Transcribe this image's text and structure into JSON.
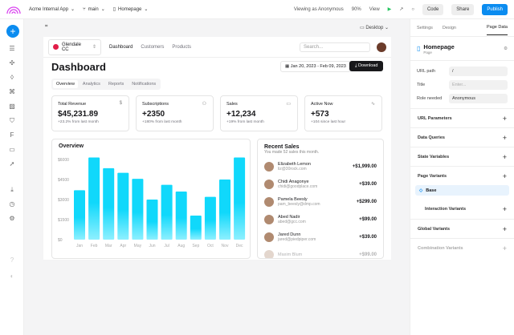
{
  "topbar": {
    "app": "Acme Internal App",
    "branch": "main",
    "page": "Homepage",
    "viewing": "Viewing as Anonymous",
    "zoom": "90%",
    "view": "View",
    "code": "Code",
    "share": "Share",
    "publish": "Publish"
  },
  "canvas": {
    "device": "Desktop"
  },
  "nav": {
    "team": "Glendale CC",
    "links": [
      "Dashboard",
      "Customers",
      "Products"
    ],
    "search_placeholder": "Search..."
  },
  "dashboard": {
    "title": "Dashboard",
    "date_range": "Jan 20, 2023 - Feb 09, 2023",
    "download": "Download",
    "tabs": [
      "Overview",
      "Analytics",
      "Reports",
      "Notifications"
    ],
    "cards": [
      {
        "title": "Total Revenue",
        "value": "$45,231.89",
        "sub": "+23.2% from last month",
        "icon": "$"
      },
      {
        "title": "Subscriptions",
        "value": "+2350",
        "sub": "+180% from last month",
        "icon": "👥"
      },
      {
        "title": "Sales",
        "value": "+12,234",
        "sub": "+19% from last month",
        "icon": "▭"
      },
      {
        "title": "Active Now",
        "value": "+573",
        "sub": "+104 since last hour",
        "icon": "∿"
      }
    ],
    "recent_title": "Recent Sales",
    "recent_sub": "You made 52 sales this month.",
    "sales": [
      {
        "name": "Elizabeth Lemon",
        "email": "liz@30rock.com",
        "amount": "+$1,999.00"
      },
      {
        "name": "Chidi Anagonye",
        "email": "chidi@goodplace.com",
        "amount": "+$39.00"
      },
      {
        "name": "Pamela Beesly",
        "email": "pam_beesly@dmp.com",
        "amount": "+$299.00"
      },
      {
        "name": "Abed Nadir",
        "email": "abed@gcc.com",
        "amount": "+$99.00"
      },
      {
        "name": "Jared Dunn",
        "email": "jared@piedpiper.com",
        "amount": "+$39.00"
      },
      {
        "name": "Maxim Blum",
        "email": "",
        "amount": "+$99.00"
      }
    ]
  },
  "chart_data": {
    "type": "bar",
    "title": "Overview",
    "categories": [
      "Jan",
      "Feb",
      "Mar",
      "Apr",
      "May",
      "Jun",
      "Jul",
      "Aug",
      "Sep",
      "Oct",
      "Nov",
      "Dec"
    ],
    "values": [
      3700,
      6150,
      5350,
      5000,
      4550,
      3000,
      4100,
      3600,
      1800,
      3200,
      4500,
      6150
    ],
    "yticks": [
      "$0",
      "$1500",
      "$3000",
      "$4500",
      "$6000"
    ],
    "ylim": [
      0,
      6000
    ],
    "color": "#10d8fb"
  },
  "panel": {
    "tabs": [
      "Settings",
      "Design",
      "Page Data"
    ],
    "page_name": "Homepage",
    "page_type": "Page",
    "fields": [
      {
        "label": "URL path",
        "value": "/"
      },
      {
        "label": "Title",
        "value": "Enter..."
      },
      {
        "label": "Role needed",
        "value": "Anonymous"
      }
    ],
    "sections": [
      "URL Parameters",
      "Data Queries",
      "State Variables",
      "Page Variants"
    ],
    "base": "Base",
    "interaction": "Interaction Variants",
    "global": "Global Variants",
    "combination": "Combination Variants"
  }
}
